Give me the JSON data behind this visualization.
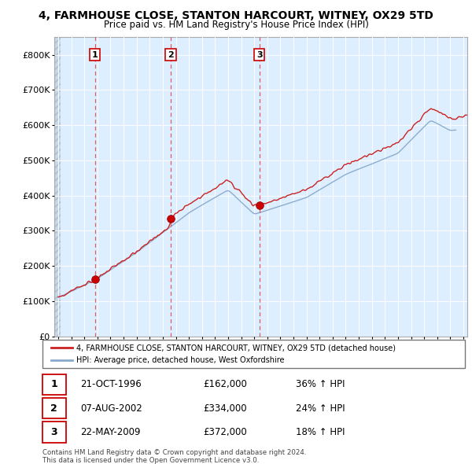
{
  "title": "4, FARMHOUSE CLOSE, STANTON HARCOURT, WITNEY, OX29 5TD",
  "subtitle": "Price paid vs. HM Land Registry's House Price Index (HPI)",
  "ylim": [
    0,
    850000
  ],
  "yticks": [
    0,
    100000,
    200000,
    300000,
    400000,
    500000,
    600000,
    700000,
    800000
  ],
  "ytick_labels": [
    "£0",
    "£100K",
    "£200K",
    "£300K",
    "£400K",
    "£500K",
    "£600K",
    "£700K",
    "£800K"
  ],
  "xlim_start": 1993.7,
  "xlim_end": 2025.3,
  "xticks": [
    1994,
    1995,
    1996,
    1997,
    1998,
    1999,
    2000,
    2001,
    2002,
    2003,
    2004,
    2005,
    2006,
    2007,
    2008,
    2009,
    2010,
    2011,
    2012,
    2013,
    2014,
    2015,
    2016,
    2017,
    2018,
    2019,
    2020,
    2021,
    2022,
    2023,
    2024,
    2025
  ],
  "red_line_color": "#cc2222",
  "blue_line_color": "#88aacc",
  "chart_bg_color": "#ddeeff",
  "purchase_dates": [
    1996.8,
    2002.6,
    2009.4
  ],
  "purchase_prices": [
    162000,
    334000,
    372000
  ],
  "purchase_labels": [
    "1",
    "2",
    "3"
  ],
  "legend_red_label": "4, FARMHOUSE CLOSE, STANTON HARCOURT, WITNEY, OX29 5TD (detached house)",
  "legend_blue_label": "HPI: Average price, detached house, West Oxfordshire",
  "table_rows": [
    {
      "num": "1",
      "date": "21-OCT-1996",
      "price": "£162,000",
      "info": "36% ↑ HPI"
    },
    {
      "num": "2",
      "date": "07-AUG-2002",
      "price": "£334,000",
      "info": "24% ↑ HPI"
    },
    {
      "num": "3",
      "date": "22-MAY-2009",
      "price": "£372,000",
      "info": "18% ↑ HPI"
    }
  ],
  "footnote": "Contains HM Land Registry data © Crown copyright and database right 2024.\nThis data is licensed under the Open Government Licence v3.0."
}
